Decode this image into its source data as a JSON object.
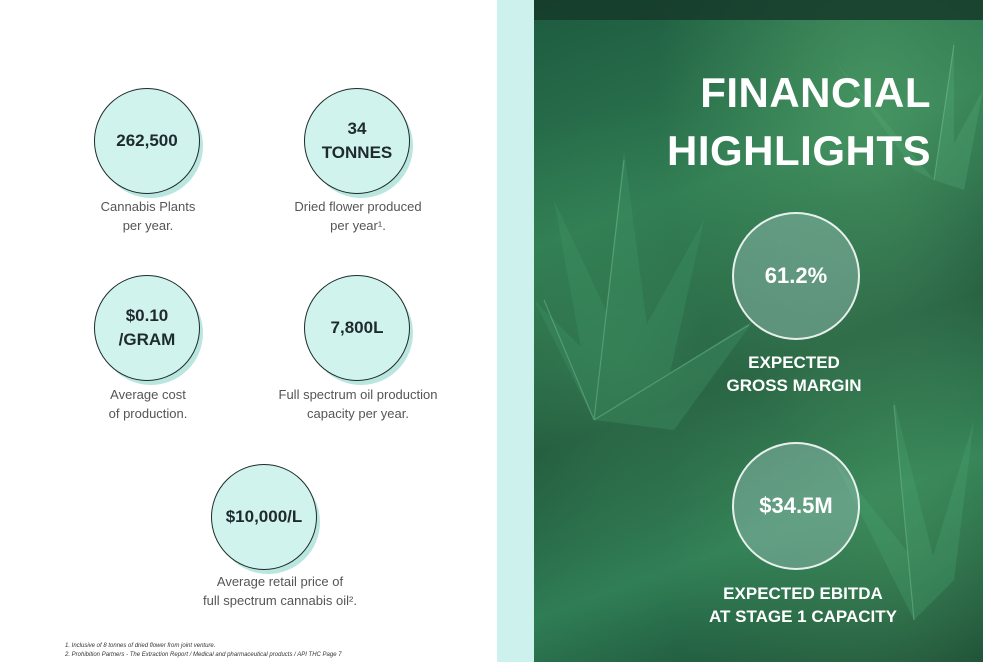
{
  "stats": [
    {
      "value_lines": [
        "262,500"
      ],
      "caption_lines": [
        "Cannabis Plants",
        "per year."
      ]
    },
    {
      "value_lines": [
        "34",
        "TONNES"
      ],
      "caption_lines": [
        "Dried flower produced",
        "per year¹."
      ]
    },
    {
      "value_lines": [
        "$0.10",
        "/GRAM"
      ],
      "caption_lines": [
        "Average cost",
        "of production."
      ]
    },
    {
      "value_lines": [
        "7,800L"
      ],
      "caption_lines": [
        "Full spectrum oil production",
        "capacity per year."
      ]
    },
    {
      "value_lines": [
        "$10,000/L"
      ],
      "caption_lines": [
        "Average retail price of",
        "full  spectrum cannabis oil²."
      ]
    }
  ],
  "footnotes": [
    "1. Inclusive of 8 tonnes of dried flower from joint venture.",
    "2. Prohibition Partners - The Extraction Report / Medical and pharmaceutical products / API THC Page 7"
  ],
  "highlights": {
    "title_lines": [
      "FINANCIAL",
      "HIGHLIGHTS"
    ],
    "items": [
      {
        "value": "61.2%",
        "caption_lines": [
          "EXPECTED",
          "GROSS MARGIN"
        ]
      },
      {
        "value": "$34.5M",
        "caption_lines": [
          "EXPECTED EBITDA",
          "AT  STAGE 1 CAPACITY"
        ]
      }
    ]
  },
  "colors": {
    "bubble_fill": "#d1f3ee",
    "panel_accent": "#cdf1ec",
    "leaf_green": "#2e7a52"
  }
}
